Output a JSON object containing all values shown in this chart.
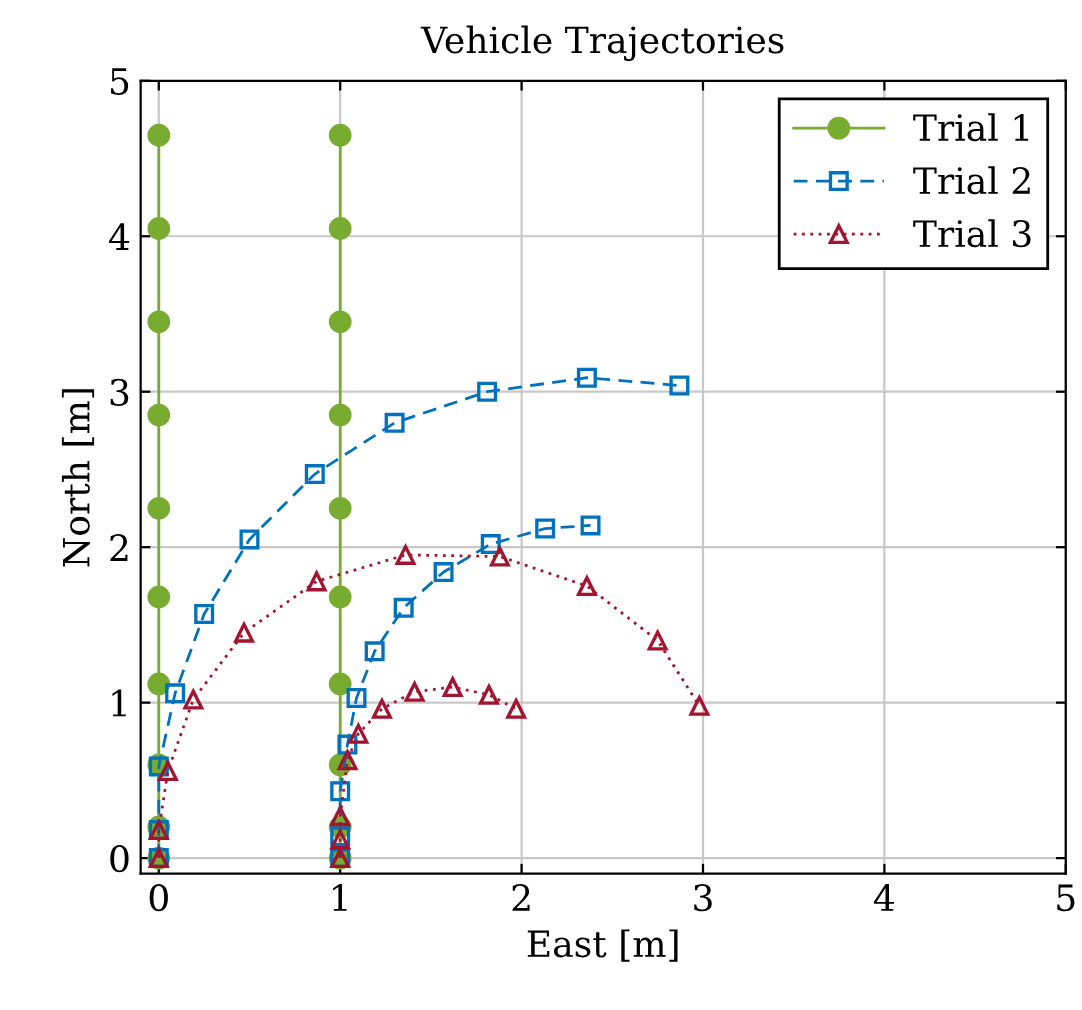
{
  "chart_data": {
    "type": "line",
    "title": "Vehicle Trajectories",
    "xlabel": "East [m]",
    "ylabel": "North [m]",
    "xlim": [
      -0.1,
      5
    ],
    "ylim": [
      -0.1,
      5
    ],
    "xticks": [
      0,
      1,
      2,
      3,
      4,
      5
    ],
    "yticks": [
      0,
      1,
      2,
      3,
      4,
      5
    ],
    "grid": true,
    "legend": "top right",
    "series": [
      {
        "name": "Trial 1",
        "color": "#77ac30",
        "marker": "circle",
        "line_style": "solid",
        "x": [
          0,
          0,
          0,
          0,
          0,
          0,
          0,
          0,
          0,
          0,
          null,
          1,
          1,
          1,
          1,
          1,
          1,
          1,
          1,
          1,
          1
        ],
        "values": [
          0,
          0.2,
          0.6,
          1.12,
          1.68,
          2.25,
          2.85,
          3.45,
          4.05,
          4.65,
          null,
          0,
          0.2,
          0.6,
          1.12,
          1.68,
          2.25,
          2.85,
          3.45,
          4.05,
          4.65
        ]
      },
      {
        "name": "Trial 2",
        "color": "#0072bd",
        "marker": "square",
        "line_style": "dashed",
        "x": [
          0,
          0,
          0,
          0.09,
          0.25,
          0.5,
          0.86,
          1.3,
          1.81,
          2.36,
          2.87,
          null,
          1,
          1,
          1,
          1.04,
          1.09,
          1.19,
          1.35,
          1.57,
          1.83,
          2.13,
          2.38
        ],
        "values": [
          0,
          0.18,
          0.59,
          1.06,
          1.57,
          2.05,
          2.47,
          2.8,
          3.0,
          3.09,
          3.04,
          null,
          0,
          0.14,
          0.43,
          0.73,
          1.03,
          1.33,
          1.61,
          1.84,
          2.02,
          2.12,
          2.14
        ]
      },
      {
        "name": "Trial 3",
        "color": "#a2142f",
        "marker": "triangle",
        "line_style": "dotted",
        "x": [
          0,
          0,
          0.05,
          0.19,
          0.47,
          0.87,
          1.36,
          1.88,
          2.36,
          2.75,
          2.98,
          null,
          1,
          1,
          1,
          1.04,
          1.1,
          1.23,
          1.41,
          1.62,
          1.82,
          1.97
        ],
        "values": [
          0,
          0.18,
          0.56,
          1.02,
          1.45,
          1.78,
          1.95,
          1.94,
          1.75,
          1.4,
          0.98,
          null,
          0,
          0.12,
          0.27,
          0.63,
          0.8,
          0.96,
          1.07,
          1.1,
          1.05,
          0.96
        ]
      }
    ]
  }
}
